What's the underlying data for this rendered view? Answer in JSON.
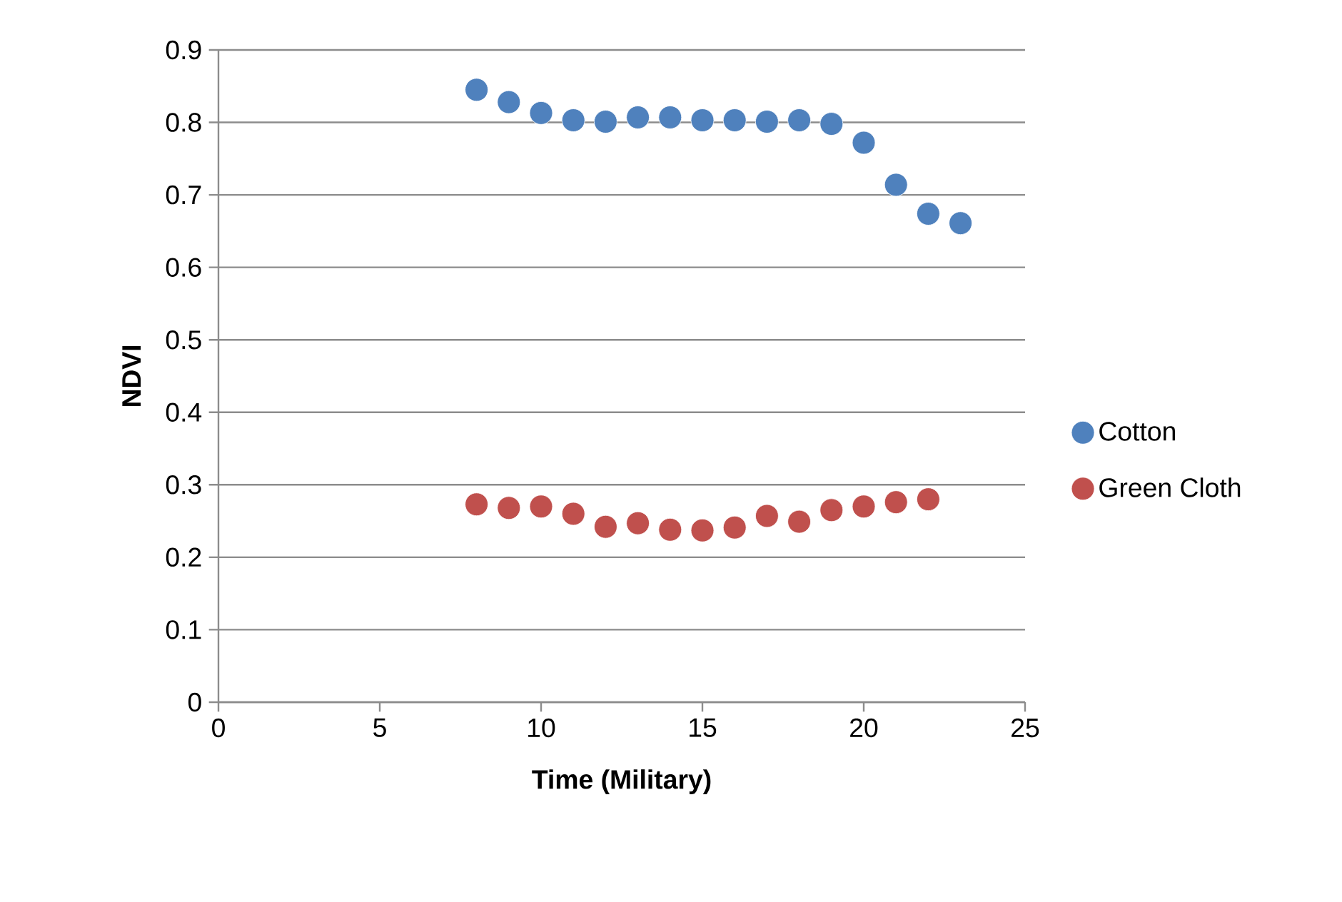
{
  "chart_data": {
    "type": "scatter",
    "xlabel": "Time (Military)",
    "ylabel": "NDVI",
    "xlim": [
      0,
      25
    ],
    "xticks": [
      0,
      5,
      10,
      15,
      20,
      25
    ],
    "ylim": [
      0,
      0.9
    ],
    "yticks": [
      0,
      0.1,
      0.2,
      0.3,
      0.4,
      0.5,
      0.6,
      0.7,
      0.8,
      0.9
    ],
    "grid": "y",
    "legend": "right",
    "marker": "circle",
    "series": [
      {
        "name": "Cotton",
        "color": "#4f81bd",
        "x": [
          8,
          9,
          10,
          11,
          12,
          13,
          14,
          15,
          16,
          17,
          18,
          19,
          20,
          21,
          22,
          23
        ],
        "values": [
          0.845,
          0.828,
          0.813,
          0.803,
          0.801,
          0.807,
          0.807,
          0.803,
          0.803,
          0.801,
          0.803,
          0.798,
          0.772,
          0.714,
          0.674,
          0.661
        ]
      },
      {
        "name": "Green Cloth",
        "color": "#c0504d",
        "x": [
          8,
          9,
          10,
          11,
          12,
          13,
          14,
          15,
          16,
          17,
          18,
          19,
          20,
          21,
          22
        ],
        "values": [
          0.273,
          0.268,
          0.27,
          0.26,
          0.242,
          0.247,
          0.238,
          0.237,
          0.241,
          0.257,
          0.249,
          0.265,
          0.27,
          0.276,
          0.28
        ]
      }
    ]
  }
}
